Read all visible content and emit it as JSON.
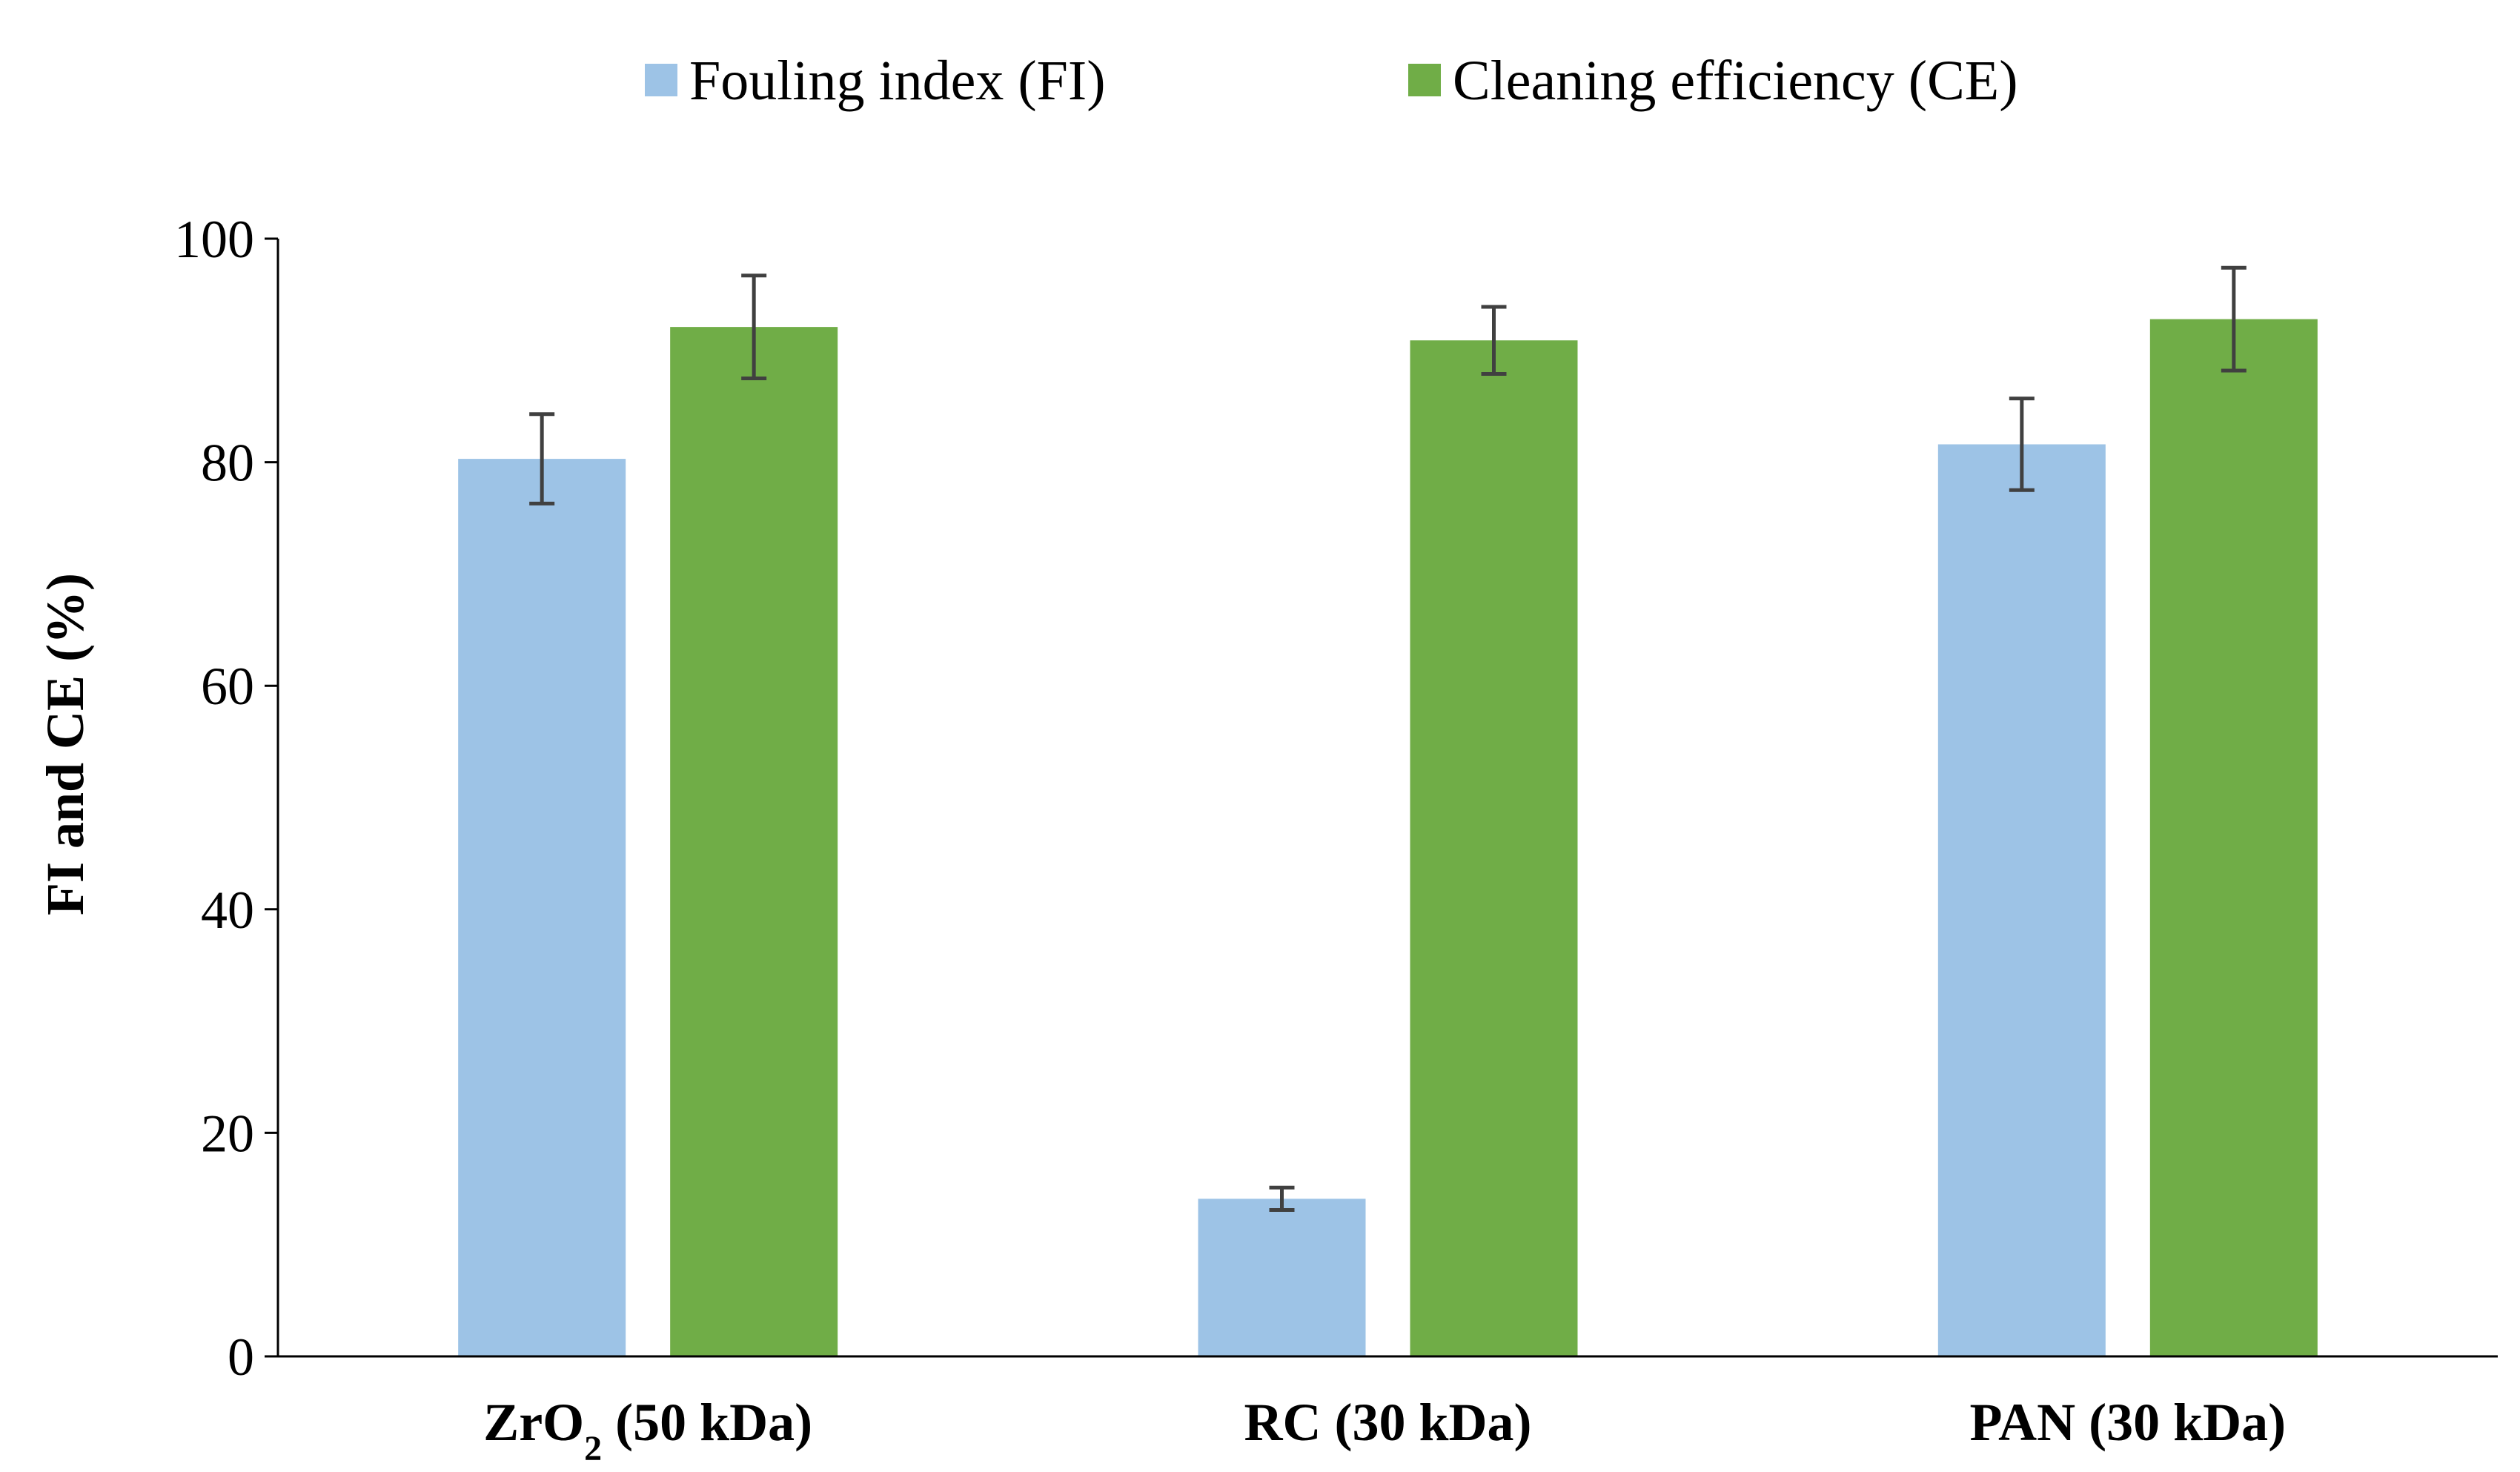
{
  "chart_data": {
    "type": "bar",
    "title": "",
    "xlabel": "",
    "ylabel": "FI and CE  (%)",
    "ylim": [
      0,
      100
    ],
    "yticks": [
      0,
      20,
      40,
      60,
      80,
      100
    ],
    "grid": false,
    "legend_position": "top-center",
    "categories": [
      {
        "main": "ZrO",
        "sub": "2",
        "rest": " (50 kDa)"
      },
      {
        "main": "RC (30 kDa)",
        "sub": "",
        "rest": ""
      },
      {
        "main": "PAN (30 kDa)",
        "sub": "",
        "rest": ""
      }
    ],
    "series": [
      {
        "name": "Fouling index (FI)",
        "color": "#9DC3E6",
        "values": [
          80.3,
          14.1,
          81.6
        ],
        "errors": [
          4.0,
          1.0,
          4.1
        ]
      },
      {
        "name": "Cleaning efficiency (CE)",
        "color": "#70AD47",
        "values": [
          92.1,
          90.9,
          92.8
        ],
        "errors": [
          4.6,
          3.0,
          4.6
        ]
      }
    ],
    "error_bar_color": "#404040",
    "axis_color": "#000000"
  }
}
